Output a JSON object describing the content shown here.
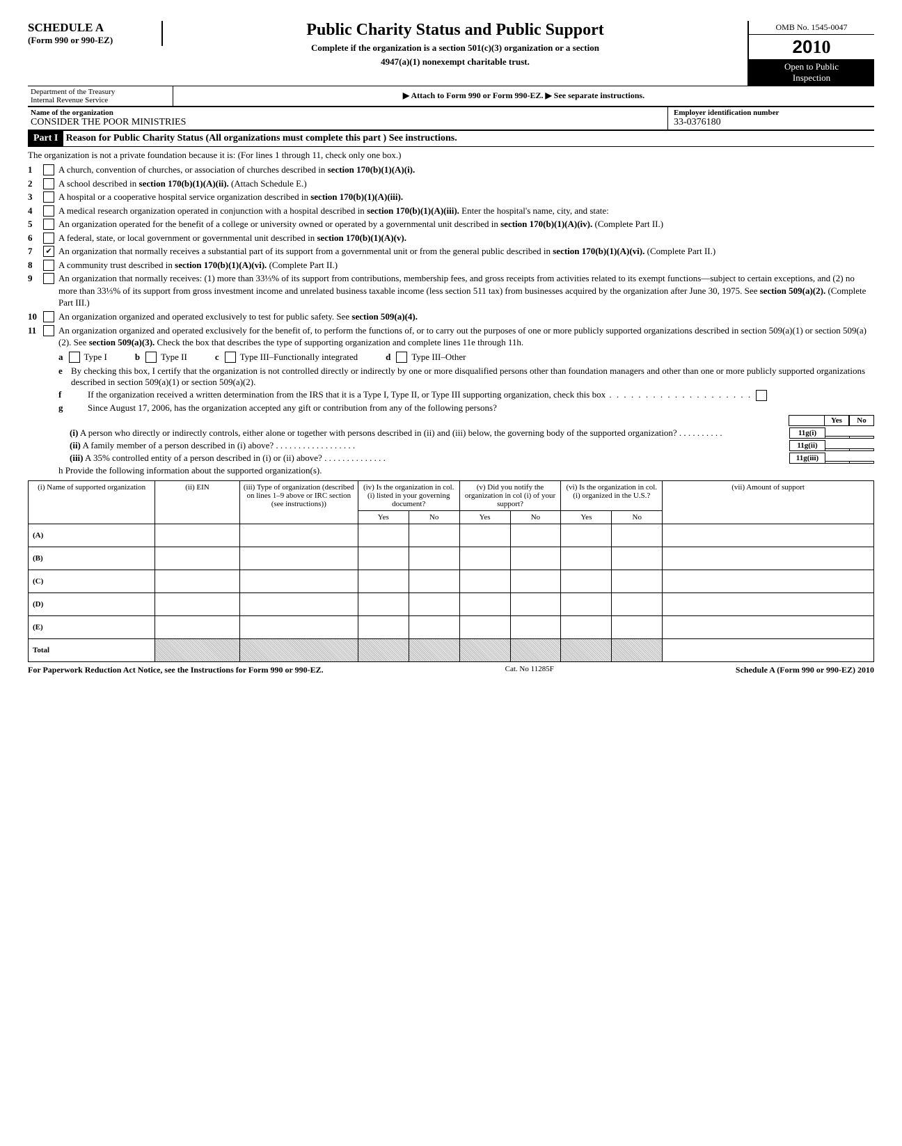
{
  "header": {
    "schedule": "SCHEDULE A",
    "form_line": "(Form 990 or 990-EZ)",
    "main_title": "Public Charity Status and Public Support",
    "subtitle1": "Complete if the organization is a section 501(c)(3) organization or a section",
    "subtitle2": "4947(a)(1) nonexempt charitable trust.",
    "omb": "OMB No. 1545-0047",
    "year_prefix": "20",
    "year_suffix": "10",
    "open_public1": "Open to Public",
    "open_public2": "Inspection",
    "dept1": "Department of the Treasury",
    "dept2": "Internal Revenue Service",
    "attach": "▶ Attach to Form 990 or Form 990-EZ. ▶ See separate instructions.",
    "name_label": "Name of the organization",
    "org_name": "CONSIDER THE POOR MINISTRIES",
    "ein_label": "Employer identification number",
    "ein": "33-0376180"
  },
  "part1": {
    "bar": "Part I",
    "title": "Reason for Public Charity Status (All organizations must complete this part ) See instructions.",
    "intro": "The organization is not a private foundation because it is: (For lines 1 through 11, check only one box.)",
    "items": [
      {
        "n": "1",
        "t": "A church, convention of churches, or association of churches described in <b>section 170(b)(1)(A)(i).</b>"
      },
      {
        "n": "2",
        "t": "A school described in <b>section 170(b)(1)(A)(ii).</b> (Attach Schedule E.)"
      },
      {
        "n": "3",
        "t": "A hospital or a cooperative hospital service organization described in <b>section 170(b)(1)(A)(iii).</b>"
      },
      {
        "n": "4",
        "t": "A medical research organization operated in conjunction with a hospital described in <b>section 170(b)(1)(A)(iii).</b> Enter the hospital's name, city, and state:"
      },
      {
        "n": "5",
        "t": "An organization operated for the benefit of a college or university owned or operated by a governmental unit described in <b>section 170(b)(1)(A)(iv).</b> (Complete Part II.)"
      },
      {
        "n": "6",
        "t": "A federal, state, or local government or governmental unit described in <b>section 170(b)(1)(A)(v).</b>"
      },
      {
        "n": "7",
        "chk": true,
        "t": "An organization that normally receives a substantial part of its support from a governmental unit or from the general public described in <b>section 170(b)(1)(A)(vi).</b> (Complete Part II.)"
      },
      {
        "n": "8",
        "t": "A community trust described in <b>section 170(b)(1)(A)(vi).</b> (Complete Part II.)"
      },
      {
        "n": "9",
        "t": "An organization that normally receives: (1) more than 33⅓% of its support from contributions, membership fees, and gross receipts from activities related to its exempt functions—subject to certain exceptions, and (2) no more than 33⅓% of its support from gross investment income and unrelated business taxable income (less section 511 tax) from businesses acquired by the organization after June 30, 1975. See <b>section 509(a)(2).</b> (Complete Part III.)"
      },
      {
        "n": "10",
        "t": "An organization organized and operated exclusively to test for public safety. See <b>section 509(a)(4).</b>"
      },
      {
        "n": "11",
        "t": "An organization organized and operated exclusively for the benefit of, to perform the functions of, or to carry out the purposes of one or more publicly supported organizations described in section 509(a)(1) or section 509(a)(2). See <b>section 509(a)(3).</b> Check the box that describes the type of supporting organization and complete lines 11e through 11h."
      }
    ],
    "types": {
      "a": "Type I",
      "b": "Type II",
      "c": "Type III–Functionally integrated",
      "d": "Type III–Other"
    },
    "sub": {
      "e": "By checking this box, I certify that the organization is not controlled directly or indirectly by one or more disqualified persons other than foundation managers and other than one or more publicly supported organizations described in section 509(a)(1) or section 509(a)(2).",
      "f": "If the organization received a written determination from the IRS that it is a Type I, Type II, or Type III supporting organization, check this box",
      "g": "Since August 17, 2006, has the organization accepted any gift or contribution from any of the following persons?",
      "gi": "A person who directly or indirectly controls, either alone or together with persons described in (ii) and (iii) below, the governing body of the supported organization?",
      "gii": "A family member of a person described in (i) above?",
      "giii": "A 35% controlled entity of a person described in (i) or (ii) above?",
      "h": "Provide the following information about the supported organization(s).",
      "ref_i": "11g(i)",
      "ref_ii": "11g(ii)",
      "ref_iii": "11g(iii)",
      "yes": "Yes",
      "no": "No"
    },
    "table": {
      "cols": [
        "(i) Name of supported organization",
        "(ii) EIN",
        "(iii) Type of organization (described on lines 1–9 above or IRC section (see instructions))",
        "(iv) Is the organization in col. (i) listed in your governing document?",
        "(v) Did you notify the organization in col (i) of your support?",
        "(vi) Is the organization in col. (i) organized in the U.S.?",
        "(vii) Amount of support"
      ],
      "yn": {
        "yes": "Yes",
        "no": "No"
      },
      "rows": [
        "(A)",
        "(B)",
        "(C)",
        "(D)",
        "(E)"
      ],
      "total": "Total"
    }
  },
  "footer": {
    "left": "For Paperwork Reduction Act Notice, see the Instructions for Form 990 or 990-EZ.",
    "mid": "Cat. No  11285F",
    "right": "Schedule A (Form 990 or 990-EZ) 2010"
  }
}
